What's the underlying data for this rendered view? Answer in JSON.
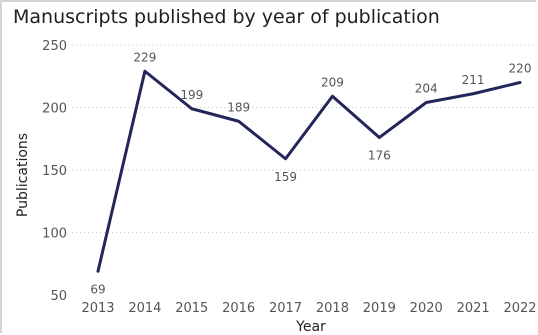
{
  "chart_data": {
    "type": "line",
    "title": "Manuscripts published by year of publication",
    "xlabel": "Year",
    "ylabel": "Publications",
    "categories": [
      "2013",
      "2014",
      "2015",
      "2016",
      "2017",
      "2018",
      "2019",
      "2020",
      "2021",
      "2022"
    ],
    "values": [
      69,
      229,
      199,
      189,
      159,
      209,
      176,
      204,
      211,
      220
    ],
    "y_ticks": [
      50,
      100,
      150,
      200,
      250
    ],
    "ylim": [
      50,
      250
    ],
    "grid": true,
    "line_color": "#23265a"
  }
}
